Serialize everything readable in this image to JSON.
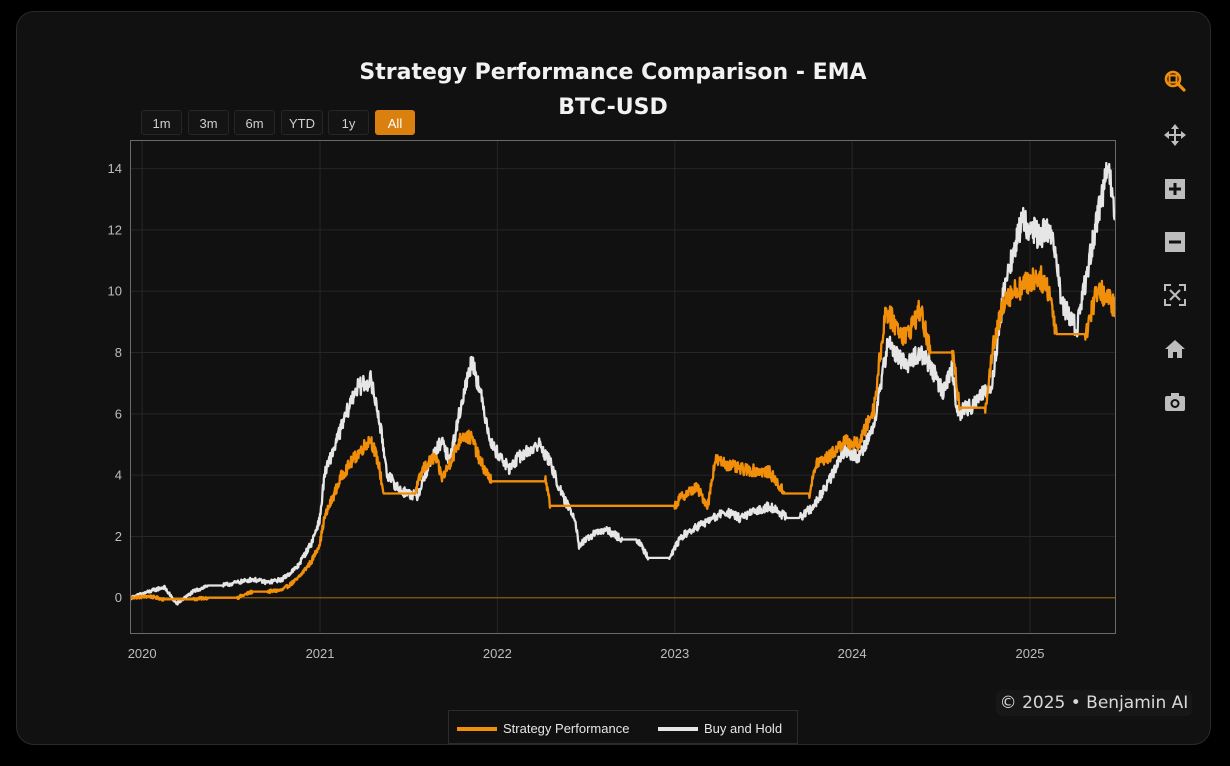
{
  "header": {
    "title_line1": "Strategy Performance Comparison - EMA",
    "title_line2": "BTC-USD"
  },
  "range_selector": {
    "buttons": [
      "1m",
      "3m",
      "6m",
      "YTD",
      "1y",
      "All"
    ],
    "active": "All",
    "active_color": "#d9800e"
  },
  "toolbar": {
    "icons": [
      "zoom-icon",
      "pan-icon",
      "zoom-in-icon",
      "zoom-out-icon",
      "autoscale-icon",
      "reset-axes-home-icon",
      "download-camera-icon"
    ],
    "active_icon": "zoom-icon"
  },
  "footer": {
    "text": "© 2025 • Benjamin AI"
  },
  "chart_data": {
    "type": "line",
    "title": "Strategy Performance Comparison - EMA BTC-USD",
    "xlabel": "",
    "ylabel": "",
    "x_ticks": [
      "2020",
      "2021",
      "2022",
      "2023",
      "2024",
      "2025"
    ],
    "y_ticks": [
      0,
      2,
      4,
      6,
      8,
      10,
      12,
      14
    ],
    "xlim": [
      "2019-12-09",
      "2025-06-25"
    ],
    "ylim": [
      -1.15,
      14.9
    ],
    "grid": true,
    "zero_line": {
      "y": 0,
      "color": "#8a5a12"
    },
    "legend_position": "bottom-center",
    "series": [
      {
        "name": "Strategy Performance",
        "color": "#f18f0a",
        "x": [
          "2019-12-09",
          "2020-01-15",
          "2020-02-15",
          "2020-03-12",
          "2020-04-15",
          "2020-05-15",
          "2020-06-15",
          "2020-07-15",
          "2020-08-15",
          "2020-09-15",
          "2020-10-15",
          "2020-11-15",
          "2020-12-15",
          "2021-01-01",
          "2021-01-10",
          "2021-02-15",
          "2021-03-15",
          "2021-04-15",
          "2021-05-01",
          "2021-05-12",
          "2021-06-15",
          "2021-07-15",
          "2021-08-01",
          "2021-08-25",
          "2021-09-10",
          "2021-10-01",
          "2021-10-20",
          "2021-11-10",
          "2021-11-25",
          "2021-12-20",
          "2022-02-15",
          "2022-03-15",
          "2022-04-10",
          "2022-04-20",
          "2022-06-15",
          "2022-09-15",
          "2023-01-01",
          "2023-01-15",
          "2023-02-15",
          "2023-03-10",
          "2023-03-25",
          "2023-05-15",
          "2023-07-15",
          "2023-08-15",
          "2023-10-05",
          "2023-10-20",
          "2023-11-15",
          "2023-12-15",
          "2024-01-15",
          "2024-02-15",
          "2024-03-10",
          "2024-03-30",
          "2024-04-20",
          "2024-05-20",
          "2024-06-10",
          "2024-06-25",
          "2024-07-25",
          "2024-08-10",
          "2024-09-01",
          "2024-10-01",
          "2024-10-15",
          "2024-11-10",
          "2024-12-10",
          "2025-01-20",
          "2025-02-10",
          "2025-02-25",
          "2025-03-10",
          "2025-04-25",
          "2025-05-20",
          "2025-06-25"
        ],
        "y": [
          0,
          0.05,
          -0.05,
          -0.05,
          -0.05,
          0,
          0,
          0,
          0.2,
          0.2,
          0.25,
          0.6,
          1.2,
          1.8,
          2.6,
          4.0,
          4.6,
          5.2,
          4.4,
          3.4,
          3.4,
          3.4,
          4.2,
          4.6,
          3.9,
          4.6,
          5.3,
          5.2,
          4.5,
          3.8,
          3.8,
          3.8,
          3.8,
          3.0,
          3.0,
          3.0,
          3.0,
          3.3,
          3.6,
          3.0,
          4.5,
          4.2,
          4.1,
          3.4,
          3.4,
          4.4,
          4.6,
          5.1,
          5.0,
          6.2,
          9.4,
          8.9,
          8.5,
          9.4,
          8.0,
          8.0,
          8.0,
          6.2,
          6.2,
          6.2,
          8.0,
          9.8,
          10.1,
          10.5,
          10.0,
          8.6,
          8.6,
          8.6,
          10.1,
          9.5
        ]
      },
      {
        "name": "Buy and Hold",
        "color": "#e6e6e6",
        "x": [
          "2019-12-09",
          "2020-01-15",
          "2020-02-15",
          "2020-03-12",
          "2020-04-15",
          "2020-05-15",
          "2020-06-15",
          "2020-07-15",
          "2020-08-15",
          "2020-09-15",
          "2020-10-15",
          "2020-11-15",
          "2020-12-15",
          "2021-01-01",
          "2021-01-10",
          "2021-02-15",
          "2021-03-15",
          "2021-04-15",
          "2021-05-01",
          "2021-05-20",
          "2021-06-15",
          "2021-07-20",
          "2021-08-15",
          "2021-09-07",
          "2021-09-25",
          "2021-10-20",
          "2021-11-10",
          "2021-11-25",
          "2021-12-20",
          "2022-01-25",
          "2022-02-15",
          "2022-03-28",
          "2022-04-20",
          "2022-05-15",
          "2022-06-10",
          "2022-06-18",
          "2022-07-20",
          "2022-08-15",
          "2022-09-15",
          "2022-10-15",
          "2022-11-09",
          "2022-12-20",
          "2023-01-15",
          "2023-02-15",
          "2023-03-10",
          "2023-04-15",
          "2023-05-15",
          "2023-06-15",
          "2023-07-15",
          "2023-08-20",
          "2023-09-15",
          "2023-10-15",
          "2023-11-15",
          "2023-12-15",
          "2024-01-15",
          "2024-02-15",
          "2024-03-14",
          "2024-04-20",
          "2024-05-20",
          "2024-06-10",
          "2024-07-05",
          "2024-07-25",
          "2024-08-05",
          "2024-09-06",
          "2024-10-15",
          "2024-11-10",
          "2024-12-16",
          "2025-01-20",
          "2025-02-10",
          "2025-02-28",
          "2025-03-10",
          "2025-04-08",
          "2025-05-20",
          "2025-06-10",
          "2025-06-25"
        ],
        "y": [
          0,
          0.2,
          0.35,
          -0.2,
          0.2,
          0.4,
          0.4,
          0.5,
          0.6,
          0.5,
          0.6,
          1.0,
          1.8,
          2.6,
          4.0,
          5.6,
          6.8,
          7.1,
          6.0,
          4.0,
          3.5,
          3.3,
          4.4,
          5.1,
          4.5,
          6.4,
          7.8,
          6.8,
          5.0,
          4.2,
          4.6,
          5.0,
          4.4,
          3.3,
          2.6,
          1.7,
          2.1,
          2.2,
          1.9,
          1.9,
          1.3,
          1.3,
          2.0,
          2.3,
          2.5,
          2.8,
          2.6,
          2.8,
          3.0,
          2.6,
          2.6,
          3.0,
          3.8,
          4.8,
          4.6,
          5.6,
          8.3,
          7.6,
          8.0,
          7.6,
          6.7,
          7.5,
          6.0,
          6.3,
          7.0,
          10.2,
          12.3,
          11.8,
          12.1,
          10.5,
          9.5,
          8.8,
          12.5,
          14.0,
          12.6
        ]
      }
    ]
  }
}
